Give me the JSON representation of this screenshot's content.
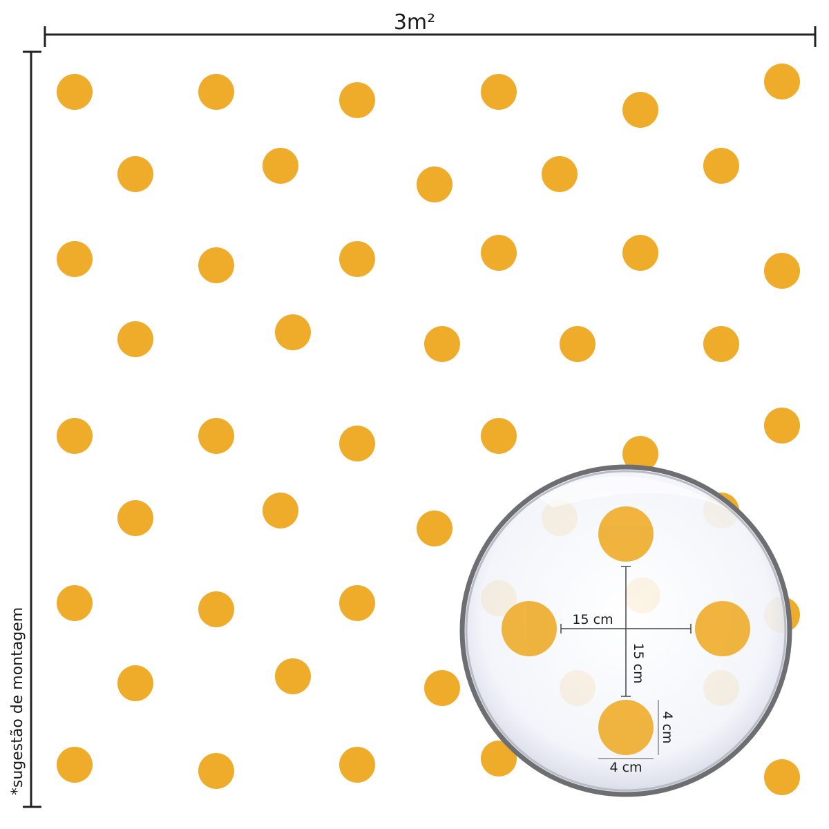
{
  "dimensions": {
    "width_label": "3m²",
    "note": "*sugestão de montagem"
  },
  "magnifier": {
    "horizontal_spacing": "15 cm",
    "vertical_spacing": "15 cm",
    "dot_height": "4 cm",
    "dot_width": "4 cm"
  }
}
